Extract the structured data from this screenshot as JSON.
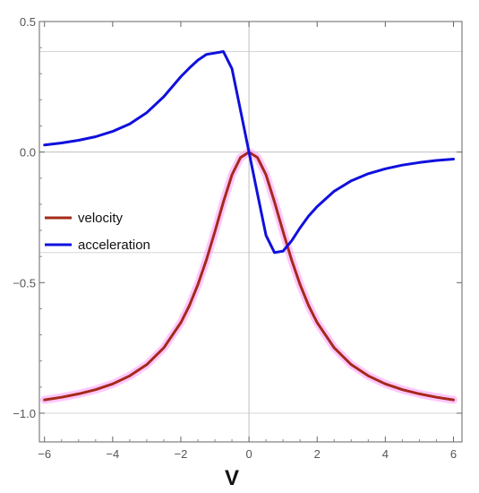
{
  "chart_data": {
    "type": "line",
    "title": "",
    "xlabel": "V",
    "ylabel": "",
    "xlim": [
      -6.15,
      6.25
    ],
    "ylim": [
      -1.11,
      0.5
    ],
    "x_ticks": [
      -6,
      -4,
      -2,
      0,
      2,
      4,
      6
    ],
    "x_tick_labels": [
      "-6",
      "-4",
      "-2",
      "0",
      "2",
      "4",
      "6"
    ],
    "y_ticks": [
      -1.0,
      -0.5,
      0.0,
      0.5
    ],
    "y_tick_labels": [
      "-1.0",
      "-0.5",
      "0.0",
      "0.5"
    ],
    "gridlines_y": [
      0.385,
      -0.385,
      -1.0
    ],
    "zero_lines": true,
    "legend_position": "left-middle",
    "series": [
      {
        "name": "velocity",
        "color": "#a52a1a",
        "shadow_color": "#ff99ff",
        "x": [
          -6,
          -5.5,
          -5,
          -4.5,
          -4,
          -3.5,
          -3,
          -2.5,
          -2,
          -1.75,
          -1.5,
          -1.25,
          -1,
          -0.75,
          -0.5,
          -0.25,
          0,
          0.25,
          0.5,
          0.75,
          1,
          1.25,
          1.5,
          1.75,
          2,
          2.5,
          3,
          3.5,
          4,
          4.5,
          5,
          5.5,
          6
        ],
        "values": [
          -0.949,
          -0.939,
          -0.926,
          -0.91,
          -0.888,
          -0.857,
          -0.814,
          -0.75,
          -0.653,
          -0.588,
          -0.508,
          -0.413,
          -0.305,
          -0.191,
          -0.087,
          -0.021,
          0.0,
          -0.021,
          -0.087,
          -0.191,
          -0.305,
          -0.413,
          -0.508,
          -0.588,
          -0.653,
          -0.75,
          -0.814,
          -0.857,
          -0.888,
          -0.91,
          -0.926,
          -0.939,
          -0.949
        ]
      },
      {
        "name": "acceleration",
        "color": "#1010dd",
        "x": [
          -6,
          -5.5,
          -5,
          -4.5,
          -4,
          -3.5,
          -3,
          -2.5,
          -2,
          -1.75,
          -1.5,
          -1.25,
          -1,
          -0.75,
          -0.5,
          -0.25,
          0,
          0.25,
          0.5,
          0.75,
          1,
          1.25,
          1.5,
          1.75,
          2,
          2.5,
          3,
          3.5,
          4,
          4.5,
          5,
          5.5,
          6
        ],
        "values": [
          0.027,
          0.035,
          0.045,
          0.059,
          0.079,
          0.108,
          0.151,
          0.212,
          0.289,
          0.322,
          0.352,
          0.374,
          0.379,
          0.385,
          0.319,
          0.16,
          0.0,
          -0.16,
          -0.319,
          -0.385,
          -0.379,
          -0.34,
          -0.29,
          -0.245,
          -0.209,
          -0.15,
          -0.11,
          -0.083,
          -0.064,
          -0.05,
          -0.04,
          -0.032,
          -0.027
        ]
      }
    ]
  }
}
